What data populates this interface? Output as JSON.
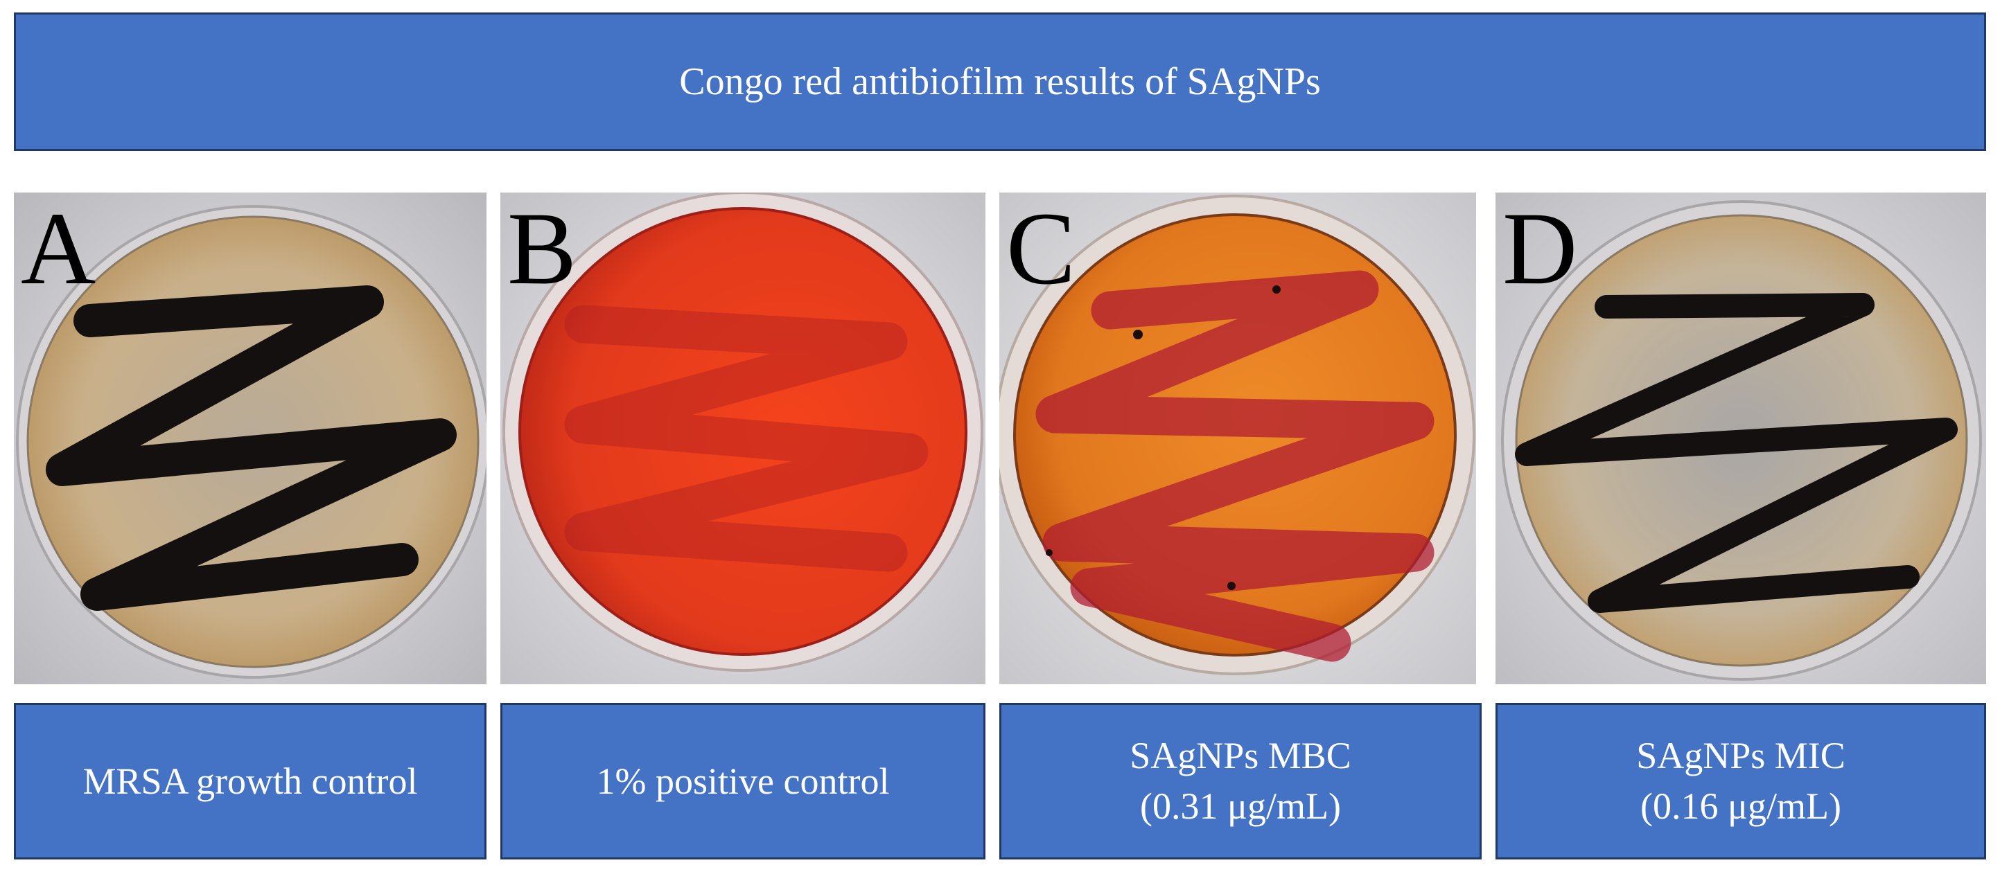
{
  "title": "Congo red antibiofilm results of SAgNPs",
  "panels": [
    {
      "letter": "A",
      "caption_line1": "MRSA growth control",
      "caption_line2": "",
      "agar_color": "#c9b08a",
      "streak_color": "#141010"
    },
    {
      "letter": "B",
      "caption_line1": "1% positive control",
      "caption_line2": "",
      "agar_color": "#e8381a",
      "streak_color": "#b01e22"
    },
    {
      "letter": "C",
      "caption_line1": "SAgNPs MBC",
      "caption_line2": "(0.31 μg/mL)",
      "agar_color": "#e2781e",
      "streak_color": "#b01e32"
    },
    {
      "letter": "D",
      "caption_line1": "SAgNPs MIC",
      "caption_line2": "(0.16 μg/mL)",
      "agar_color": "#c4b49a",
      "streak_color": "#141010"
    }
  ],
  "colors": {
    "box_fill": "#4472c4",
    "box_border": "#1f3864",
    "text": "#ffffff"
  }
}
